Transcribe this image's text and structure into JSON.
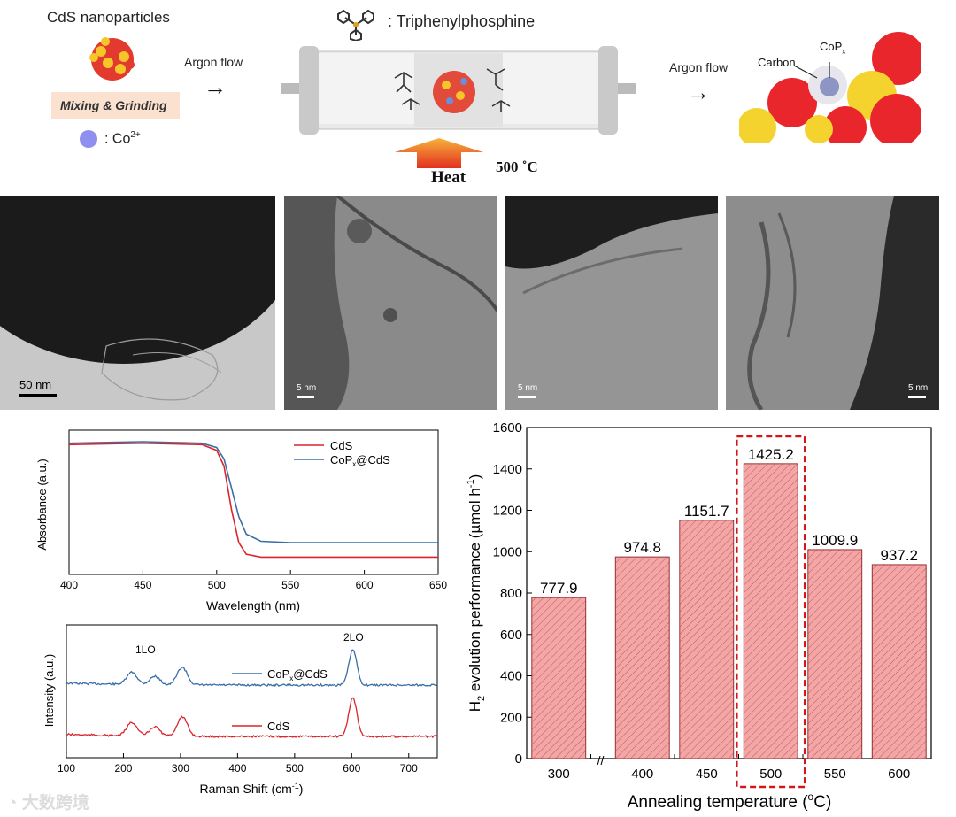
{
  "schematic": {
    "title_cds": "CdS nanoparticles",
    "argon_flow_1": "Argon flow",
    "argon_flow_2": "Argon flow",
    "mixing_grinding": "Mixing & Grinding",
    "co_legend": ": Co",
    "co_sup": "2+",
    "triphenyl_legend": ": Triphenylphosphine",
    "heat": "Heat",
    "temp": "500 ˚C",
    "carbon": "Carbon",
    "copx_base": "CoP",
    "copx_sub": "x"
  },
  "tem_panels": [
    {
      "scale": "50 nm"
    },
    {
      "scale": "5 nm"
    },
    {
      "scale": "5 nm"
    },
    {
      "scale": "5 nm"
    }
  ],
  "colors": {
    "cds_red": "#d9252b",
    "copx_blue": "#3a6ea5",
    "bar_fill": "#f4a6a6",
    "bar_edge": "#9a3030",
    "highlight": "#d01818",
    "heat_orange": "#f07820"
  },
  "chart_data": [
    {
      "type": "line",
      "title": "",
      "xlabel": "Wavelength (nm)",
      "ylabel": "Absorbance (a.u.)",
      "xlim": [
        400,
        650
      ],
      "xticks": [
        "400",
        "450",
        "500",
        "550",
        "600",
        "650"
      ],
      "legend": [
        "CdS",
        "CoPx@CdS"
      ],
      "series": [
        {
          "name": "CdS",
          "x": [
            400,
            450,
            490,
            500,
            505,
            510,
            515,
            520,
            530,
            550,
            600,
            650
          ],
          "y": [
            0.9,
            0.91,
            0.9,
            0.86,
            0.75,
            0.45,
            0.22,
            0.14,
            0.12,
            0.12,
            0.12,
            0.12
          ]
        },
        {
          "name": "CoPx@CdS",
          "x": [
            400,
            450,
            490,
            500,
            505,
            510,
            515,
            520,
            530,
            550,
            600,
            650
          ],
          "y": [
            0.91,
            0.92,
            0.91,
            0.88,
            0.8,
            0.6,
            0.4,
            0.28,
            0.23,
            0.22,
            0.22,
            0.22
          ]
        }
      ]
    },
    {
      "type": "line",
      "title": "",
      "xlabel": "Raman Shift (cm",
      "xlabel_sup": "-1",
      "xlabel_end": ")",
      "ylabel": "Intensity (a.u.)",
      "xlim": [
        100,
        750
      ],
      "xticks": [
        "100",
        "200",
        "300",
        "400",
        "500",
        "600",
        "700"
      ],
      "annotations": [
        "1LO",
        "2LO"
      ],
      "series": [
        {
          "name": "CoPx@CdS",
          "peaks": [
            [
              215,
              0.35
            ],
            [
              255,
              0.25
            ],
            [
              303,
              0.5
            ],
            [
              602,
              1.0
            ]
          ]
        },
        {
          "name": "CdS",
          "peaks": [
            [
              215,
              0.35
            ],
            [
              255,
              0.25
            ],
            [
              303,
              0.5
            ],
            [
              602,
              1.0
            ]
          ]
        }
      ],
      "legend": [
        "CoPx@CdS",
        "CdS"
      ]
    },
    {
      "type": "bar",
      "title": "",
      "xlabel": "Annealing temperature (",
      "xlabel_sup": "o",
      "xlabel_end": "C)",
      "ylabel": "H2 evolution performance (µmol h-1)",
      "ylabel_parts": {
        "h": "H",
        "sub2": "2",
        "mid": " evolution performance (µmol h",
        "sup": "-1",
        "end": ")"
      },
      "categories": [
        "300",
        "400",
        "450",
        "500",
        "550",
        "600"
      ],
      "values": [
        777.9,
        974.8,
        1151.7,
        1425.2,
        1009.9,
        937.2
      ],
      "value_labels": [
        "777.9",
        "974.8",
        "1151.7",
        "1425.2",
        "1009.9",
        "937.2"
      ],
      "ylim": [
        0,
        1600
      ],
      "yticks": [
        "0",
        "200",
        "400",
        "600",
        "800",
        "1000",
        "1200",
        "1400",
        "1600"
      ],
      "axis_break": "//",
      "highlighted": "500"
    }
  ],
  "watermark": "大数跨境"
}
